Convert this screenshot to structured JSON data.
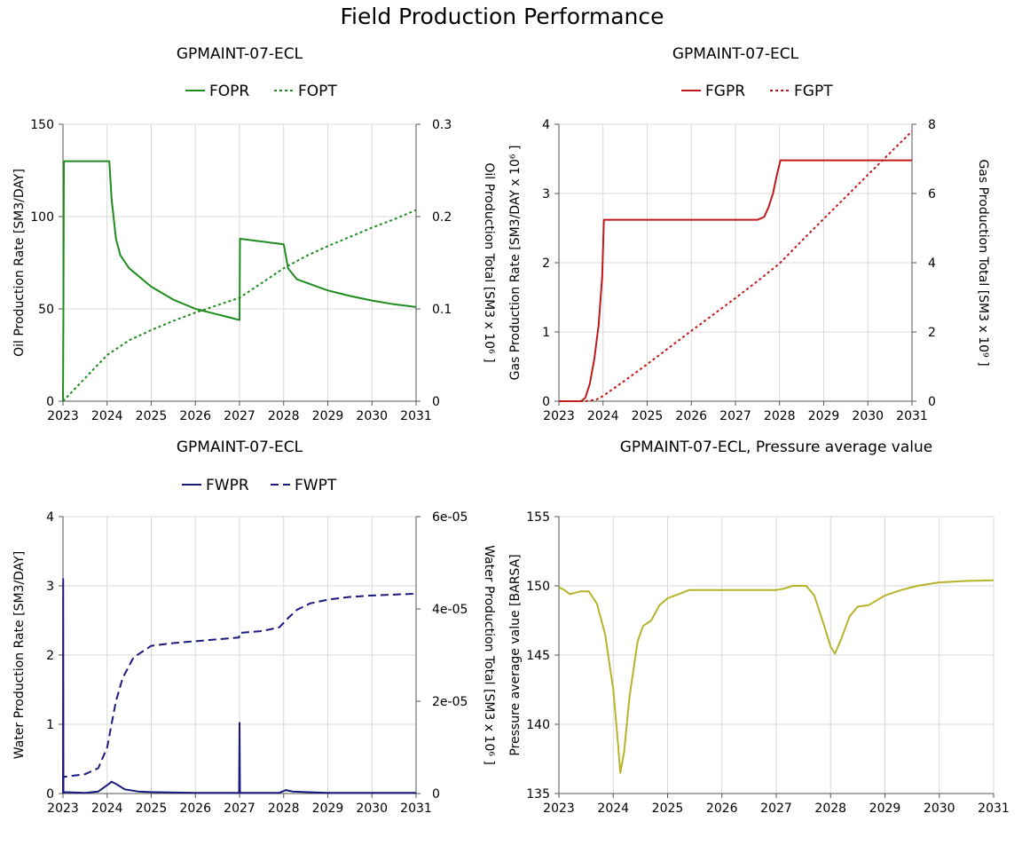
{
  "page": {
    "title": "Field Production Performance"
  },
  "chart_data": [
    {
      "id": "oil",
      "type": "line",
      "title": "GPMAINT-07-ECL",
      "xlim": [
        2023,
        2031
      ],
      "x_ticks": [
        2023,
        2024,
        2025,
        2026,
        2027,
        2028,
        2029,
        2030,
        2031
      ],
      "ylabel": "Oil Production Rate [SM3/DAY]",
      "ylim": [
        0,
        150
      ],
      "y_ticks": [
        "0",
        "50",
        "100",
        "150"
      ],
      "y_tick_values": [
        0,
        50,
        100,
        150
      ],
      "y2label": "Oil Production Total [SM3 x 10⁶ ]",
      "y2lim": [
        0,
        0.3
      ],
      "y2_ticks": [
        "0",
        "0.1",
        "0.2",
        "0.3"
      ],
      "y2_tick_values": [
        0,
        0.1,
        0.2,
        0.3
      ],
      "grid": true,
      "legend": "top-center",
      "series": [
        {
          "name": "FOPR",
          "axis": "y",
          "style": "solid",
          "color": "#1e8c1e",
          "points": [
            [
              2023,
              0
            ],
            [
              2023.01,
              52
            ],
            [
              2023.02,
              130
            ],
            [
              2024.05,
              130
            ],
            [
              2024.1,
              110
            ],
            [
              2024.2,
              88
            ],
            [
              2024.3,
              79
            ],
            [
              2024.5,
              72
            ],
            [
              2025,
              62
            ],
            [
              2025.5,
              55
            ],
            [
              2026,
              50
            ],
            [
              2026.5,
              47
            ],
            [
              2027,
              44
            ],
            [
              2027.01,
              88
            ],
            [
              2028,
              85
            ],
            [
              2028.1,
              72
            ],
            [
              2028.3,
              66
            ],
            [
              2029,
              60
            ],
            [
              2029.5,
              57
            ],
            [
              2030,
              54.5
            ],
            [
              2030.5,
              52.5
            ],
            [
              2031,
              51
            ]
          ]
        },
        {
          "name": "FOPT",
          "axis": "y2",
          "style": "dotted",
          "color": "#1e8c1e",
          "points": [
            [
              2023,
              0
            ],
            [
              2023.5,
              0.025
            ],
            [
              2024,
              0.05
            ],
            [
              2024.5,
              0.066
            ],
            [
              2025,
              0.077
            ],
            [
              2025.5,
              0.087
            ],
            [
              2026,
              0.096
            ],
            [
              2026.5,
              0.104
            ],
            [
              2027,
              0.112
            ],
            [
              2027.5,
              0.128
            ],
            [
              2028,
              0.144
            ],
            [
              2028.5,
              0.157
            ],
            [
              2029,
              0.168
            ],
            [
              2029.5,
              0.178
            ],
            [
              2030,
              0.188
            ],
            [
              2030.5,
              0.197
            ],
            [
              2031,
              0.207
            ]
          ]
        }
      ]
    },
    {
      "id": "gas",
      "type": "line",
      "title": "GPMAINT-07-ECL",
      "xlim": [
        2023,
        2031
      ],
      "x_ticks": [
        2023,
        2024,
        2025,
        2026,
        2027,
        2028,
        2029,
        2030,
        2031
      ],
      "ylabel": "Gas Production Rate [SM3/DAY x 10⁶ ]",
      "ylim": [
        0,
        4
      ],
      "y_ticks": [
        "0",
        "1",
        "2",
        "3",
        "4"
      ],
      "y_tick_values": [
        0,
        1,
        2,
        3,
        4
      ],
      "y2label": "Gas Production Total [SM3 x 10⁹ ]",
      "y2lim": [
        0,
        8
      ],
      "y2_ticks": [
        "0",
        "2",
        "4",
        "6",
        "8"
      ],
      "y2_tick_values": [
        0,
        2,
        4,
        6,
        8
      ],
      "grid": true,
      "legend": "top-center",
      "series": [
        {
          "name": "FGPR",
          "axis": "y",
          "style": "solid",
          "color": "#c0191c",
          "points": [
            [
              2023,
              0
            ],
            [
              2023.5,
              0
            ],
            [
              2023.6,
              0.05
            ],
            [
              2023.7,
              0.25
            ],
            [
              2023.8,
              0.6
            ],
            [
              2023.9,
              1.1
            ],
            [
              2023.98,
              1.8
            ],
            [
              2024.02,
              2.62
            ],
            [
              2027.5,
              2.62
            ],
            [
              2027.65,
              2.66
            ],
            [
              2027.75,
              2.8
            ],
            [
              2027.85,
              3.0
            ],
            [
              2027.95,
              3.3
            ],
            [
              2028.02,
              3.48
            ],
            [
              2031,
              3.48
            ]
          ]
        },
        {
          "name": "FGPT",
          "axis": "y2",
          "style": "dotted",
          "color": "#c0191c",
          "points": [
            [
              2023,
              0
            ],
            [
              2023.6,
              0
            ],
            [
              2023.85,
              0.05
            ],
            [
              2024,
              0.15
            ],
            [
              2024.5,
              0.6
            ],
            [
              2025,
              1.07
            ],
            [
              2026,
              2.03
            ],
            [
              2027,
              2.98
            ],
            [
              2027.5,
              3.47
            ],
            [
              2028,
              3.98
            ],
            [
              2028.5,
              4.63
            ],
            [
              2029,
              5.27
            ],
            [
              2029.5,
              5.9
            ],
            [
              2030,
              6.54
            ],
            [
              2030.5,
              7.17
            ],
            [
              2031,
              7.8
            ]
          ]
        }
      ]
    },
    {
      "id": "water",
      "type": "line",
      "title": "GPMAINT-07-ECL",
      "xlim": [
        2023,
        2031
      ],
      "x_ticks": [
        2023,
        2024,
        2025,
        2026,
        2027,
        2028,
        2029,
        2030,
        2031
      ],
      "ylabel": "Water Production Rate [SM3/DAY]",
      "ylim": [
        0,
        4
      ],
      "y_ticks": [
        "0",
        "1",
        "2",
        "3",
        "4"
      ],
      "y_tick_values": [
        0,
        1,
        2,
        3,
        4
      ],
      "y2label": "Water Production Total [SM3 x 10⁶ ]",
      "y2lim": [
        0,
        6e-05
      ],
      "y2_ticks": [
        "0",
        "2e-05",
        "4e-05",
        "6e-05"
      ],
      "y2_tick_values": [
        0,
        2e-05,
        4e-05,
        6e-05
      ],
      "grid": true,
      "legend": "top-center",
      "series": [
        {
          "name": "FWPR",
          "axis": "y",
          "style": "solid",
          "color": "#1a1a7e",
          "points": [
            [
              2023,
              0
            ],
            [
              2023.005,
              3.1
            ],
            [
              2023.01,
              0.02
            ],
            [
              2023.5,
              0.01
            ],
            [
              2023.8,
              0.03
            ],
            [
              2024,
              0.12
            ],
            [
              2024.1,
              0.17
            ],
            [
              2024.2,
              0.14
            ],
            [
              2024.4,
              0.06
            ],
            [
              2024.7,
              0.03
            ],
            [
              2025,
              0.02
            ],
            [
              2026,
              0.01
            ],
            [
              2026.99,
              0.01
            ],
            [
              2027,
              1.02
            ],
            [
              2027.01,
              0.01
            ],
            [
              2027.9,
              0.01
            ],
            [
              2028.05,
              0.05
            ],
            [
              2028.2,
              0.03
            ],
            [
              2028.5,
              0.02
            ],
            [
              2029,
              0.01
            ],
            [
              2031,
              0.01
            ]
          ]
        },
        {
          "name": "FWPT",
          "axis": "y2",
          "style": "dashed",
          "color": "#1a1a7e",
          "points": [
            [
              2023,
              0
            ],
            [
              2023.01,
              3.6e-06
            ],
            [
              2023.5,
              4.2e-06
            ],
            [
              2023.8,
              5.5e-06
            ],
            [
              2024,
              1e-05
            ],
            [
              2024.1,
              1.5e-05
            ],
            [
              2024.2,
              2e-05
            ],
            [
              2024.35,
              2.5e-05
            ],
            [
              2024.6,
              2.95e-05
            ],
            [
              2025,
              3.2e-05
            ],
            [
              2025.5,
              3.26e-05
            ],
            [
              2026,
              3.3e-05
            ],
            [
              2026.5,
              3.34e-05
            ],
            [
              2026.99,
              3.38e-05
            ],
            [
              2027,
              3.48e-05
            ],
            [
              2027.5,
              3.52e-05
            ],
            [
              2027.9,
              3.6e-05
            ],
            [
              2028.1,
              3.8e-05
            ],
            [
              2028.3,
              3.98e-05
            ],
            [
              2028.6,
              4.12e-05
            ],
            [
              2029,
              4.2e-05
            ],
            [
              2029.5,
              4.26e-05
            ],
            [
              2030,
              4.29e-05
            ],
            [
              2030.5,
              4.31e-05
            ],
            [
              2031,
              4.33e-05
            ]
          ]
        }
      ]
    },
    {
      "id": "pressure",
      "type": "line",
      "title": "GPMAINT-07-ECL, Pressure average value",
      "xlim": [
        2023,
        2031
      ],
      "x_ticks": [
        2023,
        2024,
        2025,
        2026,
        2027,
        2028,
        2029,
        2030,
        2031
      ],
      "ylabel": "Pressure average value [BARSA]",
      "ylim": [
        135,
        155
      ],
      "y_ticks": [
        "135",
        "140",
        "145",
        "150",
        "155"
      ],
      "y_tick_values": [
        135,
        140,
        145,
        150,
        155
      ],
      "grid": true,
      "legend": "none",
      "series": [
        {
          "name": "",
          "axis": "y",
          "style": "solid",
          "color": "#b8b32a",
          "points": [
            [
              2023,
              149.9
            ],
            [
              2023.1,
              149.7
            ],
            [
              2023.2,
              149.4
            ],
            [
              2023.3,
              149.5
            ],
            [
              2023.4,
              149.6
            ],
            [
              2023.55,
              149.6
            ],
            [
              2023.7,
              148.7
            ],
            [
              2023.85,
              146.5
            ],
            [
              2024,
              142.5
            ],
            [
              2024.08,
              139
            ],
            [
              2024.13,
              136.5
            ],
            [
              2024.2,
              138
            ],
            [
              2024.3,
              142
            ],
            [
              2024.45,
              146
            ],
            [
              2024.55,
              147.1
            ],
            [
              2024.7,
              147.5
            ],
            [
              2024.85,
              148.6
            ],
            [
              2025,
              149.1
            ],
            [
              2025.2,
              149.4
            ],
            [
              2025.4,
              149.7
            ],
            [
              2026,
              149.7
            ],
            [
              2027,
              149.7
            ],
            [
              2027.15,
              149.8
            ],
            [
              2027.3,
              150.0
            ],
            [
              2027.55,
              150.0
            ],
            [
              2027.7,
              149.3
            ],
            [
              2027.85,
              147.5
            ],
            [
              2028,
              145.6
            ],
            [
              2028.08,
              145.1
            ],
            [
              2028.2,
              146.2
            ],
            [
              2028.35,
              147.8
            ],
            [
              2028.5,
              148.5
            ],
            [
              2028.7,
              148.6
            ],
            [
              2029,
              149.3
            ],
            [
              2029.3,
              149.7
            ],
            [
              2029.6,
              150.0
            ],
            [
              2030,
              150.25
            ],
            [
              2030.5,
              150.35
            ],
            [
              2031,
              150.4
            ]
          ]
        }
      ]
    }
  ]
}
